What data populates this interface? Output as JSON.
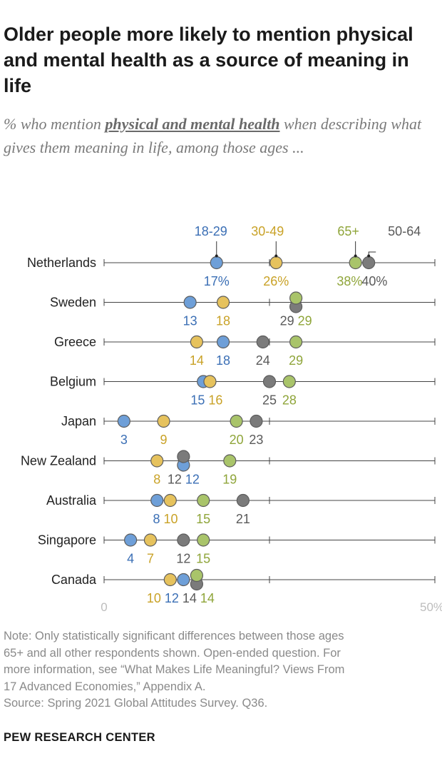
{
  "header": {
    "title": "Older people more likely to mention physical and mental health as a source of meaning in life",
    "subtitle_pre": "% who mention ",
    "subtitle_highlight": "physical and mental health",
    "subtitle_post": " when describing what gives them meaning in life, among those ages ..."
  },
  "footer": {
    "note": [
      "Note: Only statistically significant differences between those ages",
      "65+ and all other respondents shown. Open-ended question. For",
      "more information, see “What Makes Life Meaningful? Views From",
      "17 Advanced Economies,” Appendix A."
    ],
    "source": "Source: Spring 2021 Global Attitudes Survey. Q36.",
    "brand": "PEW RESEARCH CENTER"
  },
  "colors": {
    "18-29": "#6e9fd8",
    "30-49": "#e6c25d",
    "50-64": "#7b7b7b",
    "65+": "#a9c46a",
    "label_18-29": "#3b6fb5",
    "label_30-49": "#c9a227",
    "label_50-64": "#5a5a5a",
    "label_65+": "#8fa53a",
    "axis_line": "#444444",
    "tick_label": "#bdbdbd"
  },
  "chart_data": {
    "type": "dot",
    "title": "Older people more likely to mention physical and mental health as a source of meaning in life",
    "x_range": [
      0,
      50
    ],
    "x_tick_labels": [
      "0",
      "50%"
    ],
    "grid": false,
    "legend_placement": "top, above first row",
    "series_names": [
      "18-29",
      "30-49",
      "50-64",
      "65+"
    ],
    "rows": [
      {
        "country": "Netherlands",
        "values": {
          "18-29": 17,
          "30-49": 26,
          "50-64": 40,
          "65+": 38
        },
        "labels": {
          "18-29": "17%",
          "30-49": "26%",
          "50-64": "40%",
          "65+": "38%"
        }
      },
      {
        "country": "Sweden",
        "values": {
          "18-29": 13,
          "30-49": 18,
          "50-64": 29,
          "65+": 29
        },
        "labels": {
          "18-29": "13",
          "30-49": "18",
          "50-64": "29",
          "65+": "29"
        }
      },
      {
        "country": "Greece",
        "values": {
          "18-29": 18,
          "30-49": 14,
          "50-64": 24,
          "65+": 29
        },
        "labels": {
          "18-29": "18",
          "30-49": "14",
          "50-64": "24",
          "65+": "29"
        }
      },
      {
        "country": "Belgium",
        "values": {
          "18-29": 15,
          "30-49": 16,
          "50-64": 25,
          "65+": 28
        },
        "labels": {
          "18-29": "15",
          "30-49": "16",
          "50-64": "25",
          "65+": "28"
        }
      },
      {
        "country": "Japan",
        "values": {
          "18-29": 3,
          "30-49": 9,
          "50-64": 23,
          "65+": 20
        },
        "labels": {
          "18-29": "3",
          "30-49": "9",
          "50-64": "23",
          "65+": "20"
        }
      },
      {
        "country": "New Zealand",
        "values": {
          "18-29": 12,
          "30-49": 8,
          "50-64": 12,
          "65+": 19
        },
        "labels": {
          "18-29": "12",
          "30-49": "8",
          "50-64": "12",
          "65+": "19"
        }
      },
      {
        "country": "Australia",
        "values": {
          "18-29": 8,
          "30-49": 10,
          "50-64": 21,
          "65+": 15
        },
        "labels": {
          "18-29": "8",
          "30-49": "10",
          "50-64": "21",
          "65+": "15"
        }
      },
      {
        "country": "Singapore",
        "values": {
          "18-29": 4,
          "30-49": 7,
          "50-64": 12,
          "65+": 15
        },
        "labels": {
          "18-29": "4",
          "30-49": "7",
          "50-64": "12",
          "65+": "15"
        }
      },
      {
        "country": "Canada",
        "values": {
          "18-29": 12,
          "30-49": 10,
          "50-64": 14,
          "65+": 14
        },
        "labels": {
          "18-29": "12",
          "30-49": "10",
          "50-64": "14",
          "65+": "14"
        }
      }
    ]
  }
}
